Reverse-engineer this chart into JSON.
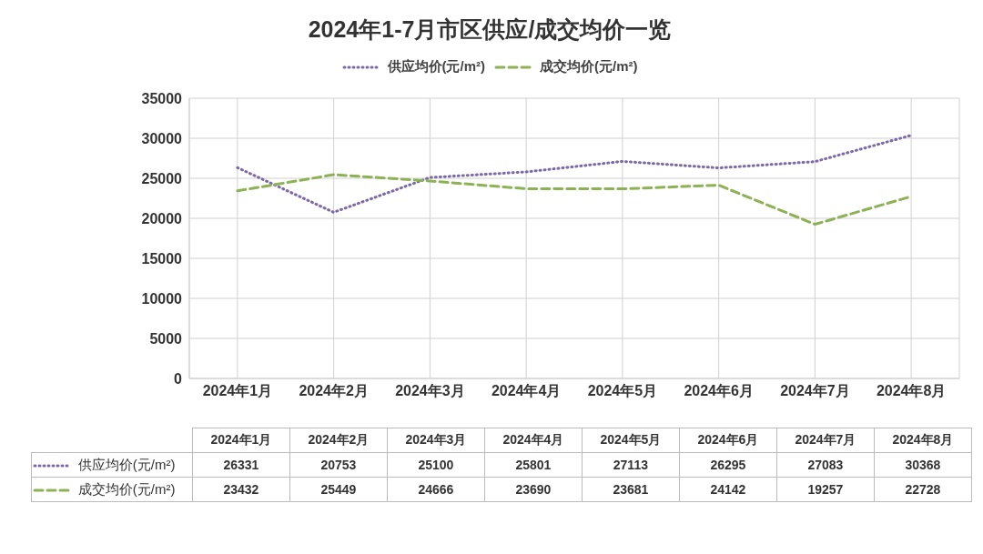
{
  "chart_data": {
    "type": "line",
    "title": "2024年1-7月市区供应/成交均价一览",
    "categories": [
      "2024年1月",
      "2024年2月",
      "2024年3月",
      "2024年4月",
      "2024年5月",
      "2024年6月",
      "2024年7月",
      "2024年8月"
    ],
    "series": [
      {
        "name": "供应均价(元/m²)",
        "color": "#7b68a6",
        "line_style": "dotted",
        "values": [
          26331,
          20753,
          25100,
          25801,
          27113,
          26295,
          27083,
          30368
        ]
      },
      {
        "name": "成交均价(元/m²)",
        "color": "#8db255",
        "line_style": "dashed",
        "values": [
          23432,
          25449,
          24666,
          23690,
          23681,
          24142,
          19257,
          22728
        ]
      }
    ],
    "ylim": [
      0,
      35000
    ],
    "yticks": [
      0,
      5000,
      10000,
      15000,
      20000,
      25000,
      30000,
      35000
    ],
    "grid": true,
    "legend": "top",
    "marker": "none",
    "data_labels": true
  }
}
